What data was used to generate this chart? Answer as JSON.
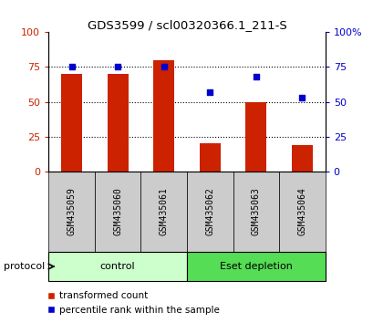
{
  "title": "GDS3599 / scl00320366.1_211-S",
  "samples": [
    "GSM435059",
    "GSM435060",
    "GSM435061",
    "GSM435062",
    "GSM435063",
    "GSM435064"
  ],
  "bar_values": [
    70,
    70,
    80,
    20,
    50,
    19
  ],
  "scatter_values": [
    75,
    75,
    75,
    57,
    68,
    53
  ],
  "bar_color": "#cc2200",
  "scatter_color": "#0000cc",
  "ylim": [
    0,
    100
  ],
  "yticks": [
    0,
    25,
    50,
    75,
    100
  ],
  "ytick_labels_left": [
    "0",
    "25",
    "50",
    "75",
    "100"
  ],
  "ytick_labels_right": [
    "0",
    "25",
    "50",
    "75",
    "100%"
  ],
  "left_tick_color": "#cc2200",
  "right_tick_color": "#0000cc",
  "groups": [
    {
      "label": "control",
      "start": 0,
      "end": 2,
      "color": "#ccffcc"
    },
    {
      "label": "Eset depletion",
      "start": 3,
      "end": 5,
      "color": "#55dd55"
    }
  ],
  "protocol_label": "protocol",
  "legend_bar_label": "transformed count",
  "legend_scatter_label": "percentile rank within the sample",
  "bar_width": 0.45,
  "tick_area_color": "#cccccc",
  "grid_color": "#000000"
}
